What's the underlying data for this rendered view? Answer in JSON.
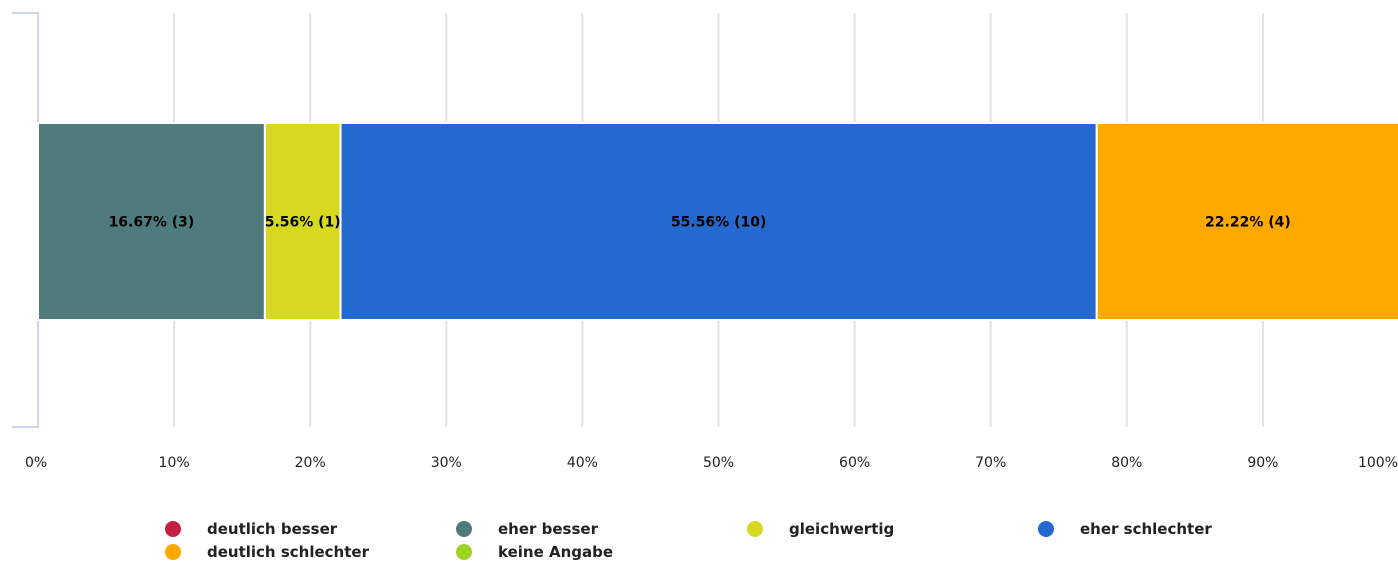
{
  "chart_data": {
    "type": "bar",
    "orientation": "horizontal",
    "stacked": true,
    "xlim": [
      0,
      100
    ],
    "x_unit": "%",
    "ticks": [
      "0%",
      "10%",
      "20%",
      "30%",
      "40%",
      "50%",
      "60%",
      "70%",
      "80%",
      "90%",
      "100%"
    ],
    "grid": true,
    "legend_position": "bottom",
    "series": [
      {
        "name": "deutlich besser",
        "color": "#c41f40",
        "value": 0,
        "count": 0,
        "label": ""
      },
      {
        "name": "eher besser",
        "color": "#4f7a7e",
        "value": 16.67,
        "count": 3,
        "label": "16.67% (3)"
      },
      {
        "name": "gleichwertig",
        "color": "#d7d921",
        "value": 5.56,
        "count": 1,
        "label": "5.56% (1)"
      },
      {
        "name": "eher schlechter",
        "color": "#2469cf",
        "value": 55.56,
        "count": 10,
        "label": "55.56% (10)"
      },
      {
        "name": "deutlich schlechter",
        "color": "#ffa800",
        "value": 22.22,
        "count": 4,
        "label": "22.22% (4)"
      },
      {
        "name": "keine Angabe",
        "color": "#9fd424",
        "value": 0,
        "count": 0,
        "label": ""
      }
    ]
  }
}
